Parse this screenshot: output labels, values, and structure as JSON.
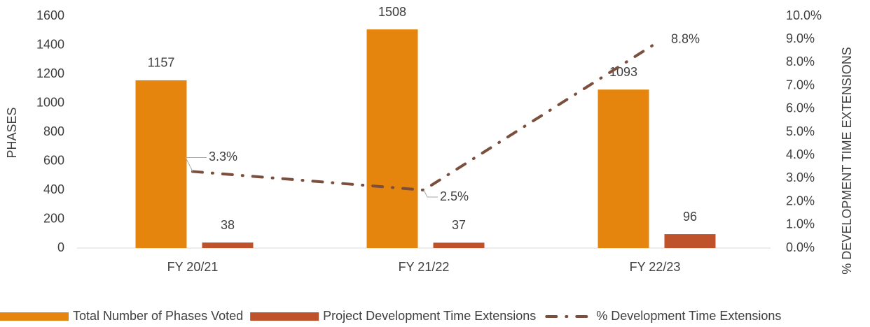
{
  "chart_data": {
    "type": "bar",
    "categories": [
      "FY 20/21",
      "FY 21/22",
      "FY 22/23"
    ],
    "series": [
      {
        "name": "Total Number of Phases Voted",
        "color": "#e6850e",
        "values": [
          1157,
          1508,
          1093
        ]
      },
      {
        "name": "Project Development Time Extensions",
        "color": "#c0522b",
        "values": [
          38,
          37,
          96
        ]
      },
      {
        "name": "% Development Time Extensions",
        "color": "#7b4f3e",
        "type": "line",
        "axis": "y2",
        "values": [
          3.3,
          2.5,
          8.8
        ],
        "value_labels": [
          "3.3%",
          "2.5%",
          "8.8%"
        ]
      }
    ],
    "ylabel": "PHASES",
    "y2label": "% DEVELOPMENT TIME EXTENSIONS",
    "ylim": [
      0,
      1600
    ],
    "yticks": [
      0,
      200,
      400,
      600,
      800,
      1000,
      1200,
      1400,
      1600
    ],
    "y2lim": [
      0,
      10
    ],
    "y2ticks": [
      {
        "value": 0,
        "label": "0.0%"
      },
      {
        "value": 1,
        "label": "1.0%"
      },
      {
        "value": 2,
        "label": "2.0%"
      },
      {
        "value": 3,
        "label": "3.0%"
      },
      {
        "value": 4,
        "label": "4.0%"
      },
      {
        "value": 5,
        "label": "5.0%"
      },
      {
        "value": 6,
        "label": "6.0%"
      },
      {
        "value": 7,
        "label": "7.0%"
      },
      {
        "value": 8,
        "label": "8.0%"
      },
      {
        "value": 9,
        "label": "9.0%"
      },
      {
        "value": 10,
        "label": "10.0%"
      }
    ],
    "legend": "bottom",
    "grid": false
  }
}
